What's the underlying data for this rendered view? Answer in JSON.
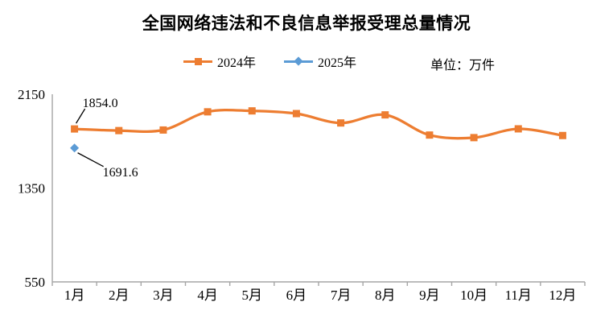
{
  "title": "全国网络违法和不良信息举报受理总量情况",
  "unit_label": "单位：万件",
  "legend": {
    "items": [
      {
        "label": "2024年",
        "color": "#ED7D31",
        "marker": "square"
      },
      {
        "label": "2025年",
        "color": "#5B9BD5",
        "marker": "diamond"
      }
    ]
  },
  "axis_color": "#A6A6A6",
  "chart_data": {
    "type": "line",
    "title": "全国网络违法和不良信息举报受理总量情况",
    "unit": "万件",
    "categories": [
      "1月",
      "2月",
      "3月",
      "4月",
      "5月",
      "6月",
      "7月",
      "8月",
      "9月",
      "10月",
      "11月",
      "12月"
    ],
    "series": [
      {
        "name": "2024年",
        "color": "#ED7D31",
        "marker": "square",
        "smooth": true,
        "values": [
          1854.0,
          1840,
          1845,
          2000,
          2008,
          1985,
          1905,
          1974,
          1802,
          1780,
          1855,
          1798
        ]
      },
      {
        "name": "2025年",
        "color": "#5B9BD5",
        "marker": "diamond",
        "smooth": false,
        "values": [
          1691.6,
          null,
          null,
          null,
          null,
          null,
          null,
          null,
          null,
          null,
          null,
          null
        ]
      }
    ],
    "y_axis": {
      "ticks": [
        2150,
        1350,
        550
      ],
      "min": 550,
      "max": 2150
    },
    "grid": false,
    "legend_position": "top",
    "annotations": [
      {
        "series": 0,
        "index": 0,
        "text": "1854.0",
        "placement": "above"
      },
      {
        "series": 1,
        "index": 0,
        "text": "1691.6",
        "placement": "below"
      }
    ]
  }
}
